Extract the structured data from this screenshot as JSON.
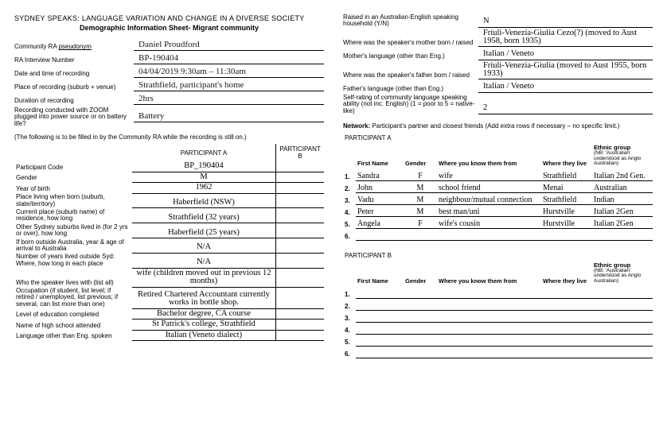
{
  "left": {
    "title_line1": "SYDNEY SPEAKS: LANGUAGE VARIATION AND CHANGE IN A DIVERSE SOCIETY",
    "title_line2": "Demographic Information Sheet- Migrant community",
    "header": {
      "pseudonym_label_prefix": "Community RA ",
      "pseudonym_label_u": "pseudonym",
      "pseudonym": "Daniel Proudford",
      "interview_num_label": "RA Interview Number",
      "interview_num": "BP-190404",
      "datetime_label": "Date and time of recording",
      "datetime": "04/04/2019   9:30am – 11:30am",
      "place_label": "Place of recording (suburb + venue)",
      "place": "Strathfield, participant's home",
      "duration_label": "Duration of recording",
      "duration": "2hrs",
      "power_label": "Recording conducted with ZOOM plugged into power source or on battery life?",
      "power": "Battery"
    },
    "section_note": "(The following is to be filled in by the Community RA while the recording is still on.)",
    "part_headers": {
      "a": "PARTICIPANT A",
      "b": "PARTICIPANT B"
    },
    "rows": [
      {
        "label": "Participant Code",
        "a": "BP_190404",
        "b": ""
      },
      {
        "label": "Gender",
        "a": "M",
        "b": ""
      },
      {
        "label": "Year of birth",
        "a": "1962",
        "b": ""
      },
      {
        "label": "Place living when born (suburb, state/territory)",
        "a": "Haberfield (NSW)",
        "b": ""
      },
      {
        "label": "Current place (suburb name) of residence, how long",
        "a": "Strathfield (32 years)",
        "b": ""
      },
      {
        "label": "Other Sydney suburbs lived in (for 2 yrs or over), how long",
        "a": "Haberfield (25 years)",
        "b": ""
      },
      {
        "label": "If born outside Australia, year & age of arrival to Australia",
        "a": "N/A",
        "b": ""
      },
      {
        "label": "Number of years lived outside Syd: Where, how long in each place",
        "a": "N/A",
        "b": ""
      },
      {
        "label": "Who the speaker lives with (list all)",
        "a": "wife   (children moved out in previous 12 months)",
        "b": ""
      },
      {
        "label": "Occupation (if student, list level; if retired / unemployed, list previous; if several, can list more than one)",
        "a": "Retired Chartered Accountant currently works in bottle shop.",
        "b": ""
      },
      {
        "label": "Level of education completed",
        "a": "Bachelor degree, CA course",
        "b": ""
      },
      {
        "label": "Name of high school attended",
        "a": "St Patrick's college, Strathfield",
        "b": ""
      },
      {
        "label": "Language other than Eng. spoken",
        "a": "Italian (Veneto dialect)",
        "b": ""
      }
    ]
  },
  "right": {
    "header": [
      {
        "label": "Raised in an Australian-English speaking household (Y/N)",
        "value": "N"
      },
      {
        "label": "Where was the speaker's mother born / raised",
        "value": "Friuli-Venezia-Giulia  Cezo(?) (moved to Aust 1958, born 1935)"
      },
      {
        "label": "Mother's language (other than Eng.)",
        "value": "Italian / Veneto"
      },
      {
        "label": "Where was the speaker's father born / raised",
        "value": "Friuli-Venezia-Giulia (moved to Aust 1955, born 1933)"
      },
      {
        "label": "Father's language (other than Eng.)",
        "value": "Italian / Veneto"
      },
      {
        "label": "Self-rating of community language speaking ability (not inc. English) (1 = poor to 5 = native-like)",
        "value": "2"
      }
    ],
    "netnote_prefix": "Network: ",
    "netnote_rest": "Participant's partner and closest friends (Add extra rows if necessary – no specific limit.)",
    "partA_head": "PARTICIPANT A",
    "partB_head": "PARTICIPANT B",
    "cols": {
      "first": "First Name",
      "gender": "Gender",
      "know": "Where you know them from",
      "live": "Where they live",
      "eth": "Ethnic group",
      "eth_sub": "(NB: 'Australian' understood as Anglo Australian)"
    },
    "partA_rows": [
      {
        "n": "1.",
        "first": "Sandra",
        "gender": "F",
        "know": "wife",
        "live": "Strathfield",
        "eth": "Italian 2nd Gen."
      },
      {
        "n": "2.",
        "first": "John",
        "gender": "M",
        "know": "school friend",
        "live": "Menai",
        "eth": "Australian"
      },
      {
        "n": "3.",
        "first": "Vadu",
        "gender": "M",
        "know": "neighbour/mutual connection",
        "live": "Strathfield",
        "eth": "Indian"
      },
      {
        "n": "4.",
        "first": "Peter",
        "gender": "M",
        "know": "best man/uni",
        "live": "Hurstville",
        "eth": "Italian 2Gen"
      },
      {
        "n": "5.",
        "first": "Angela",
        "gender": "F",
        "know": "wife's cousin",
        "live": "Hurstville",
        "eth": "Italian 2Gen"
      },
      {
        "n": "6.",
        "first": "",
        "gender": "",
        "know": "",
        "live": "",
        "eth": ""
      }
    ],
    "partB_rows": [
      {
        "n": "1.",
        "first": "",
        "gender": "",
        "know": "",
        "live": "",
        "eth": ""
      },
      {
        "n": "2.",
        "first": "",
        "gender": "",
        "know": "",
        "live": "",
        "eth": ""
      },
      {
        "n": "3.",
        "first": "",
        "gender": "",
        "know": "",
        "live": "",
        "eth": ""
      },
      {
        "n": "4.",
        "first": "",
        "gender": "",
        "know": "",
        "live": "",
        "eth": ""
      },
      {
        "n": "5.",
        "first": "",
        "gender": "",
        "know": "",
        "live": "",
        "eth": ""
      },
      {
        "n": "6.",
        "first": "",
        "gender": "",
        "know": "",
        "live": "",
        "eth": ""
      }
    ]
  }
}
